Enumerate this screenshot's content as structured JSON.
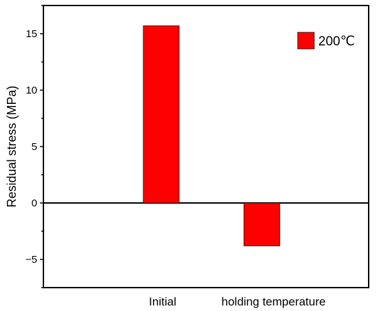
{
  "chart_data": {
    "type": "bar",
    "categories": [
      "Initial",
      "holding temperature"
    ],
    "series": [
      {
        "name": "200℃",
        "values": [
          15.7,
          -3.8
        ],
        "color": "#ff0000"
      }
    ],
    "title": "",
    "xlabel": "",
    "ylabel": "Residual stress (MPa)",
    "ylim": [
      -7.5,
      17.5
    ],
    "yticks": [
      -5,
      0,
      5,
      10,
      15
    ],
    "ytick_labels": [
      "−5",
      "0",
      "5",
      "10",
      "15"
    ],
    "grid": false,
    "zero_line": true,
    "legend_position": "top-right"
  }
}
